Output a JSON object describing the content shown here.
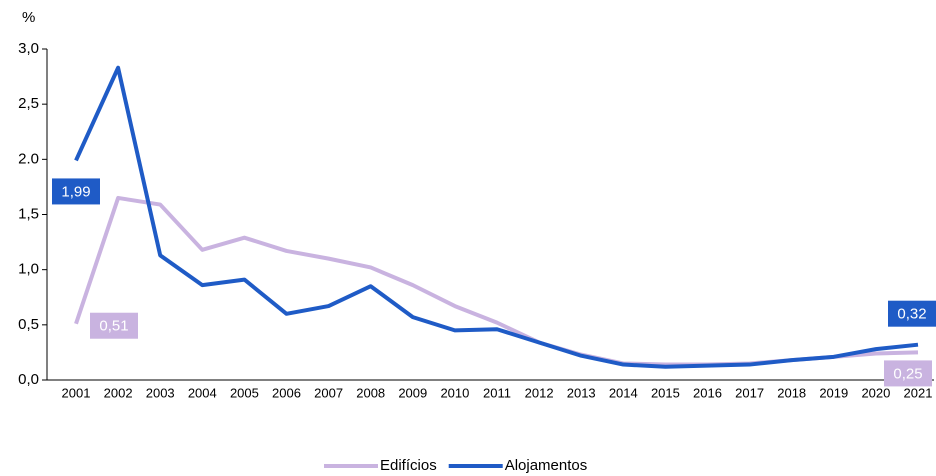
{
  "chart_data": {
    "type": "line",
    "ylabel": "%",
    "categories": [
      "2001",
      "2002",
      "2003",
      "2004",
      "2005",
      "2006",
      "2007",
      "2008",
      "2009",
      "2010",
      "2011",
      "2012",
      "2013",
      "2014",
      "2015",
      "2016",
      "2017",
      "2018",
      "2019",
      "2020",
      "2021"
    ],
    "series": [
      {
        "name": "Edifícios",
        "color": "#c9b3e0",
        "values": [
          0.51,
          1.65,
          1.59,
          1.18,
          1.29,
          1.17,
          1.1,
          1.02,
          0.86,
          0.67,
          0.52,
          0.34,
          0.23,
          0.15,
          0.14,
          0.14,
          0.15,
          0.18,
          0.21,
          0.24,
          0.25
        ],
        "value_labels": [
          "0,51",
          null,
          null,
          null,
          null,
          null,
          null,
          null,
          null,
          null,
          null,
          null,
          null,
          null,
          null,
          null,
          null,
          null,
          null,
          null,
          "0,25"
        ]
      },
      {
        "name": "Alojamentos",
        "color": "#1f5bc6",
        "values": [
          1.99,
          2.83,
          1.13,
          0.86,
          0.91,
          0.6,
          0.67,
          0.85,
          0.57,
          0.45,
          0.46,
          0.34,
          0.22,
          0.14,
          0.12,
          0.13,
          0.14,
          0.18,
          0.21,
          0.28,
          0.32
        ],
        "value_labels": [
          "1,99",
          null,
          null,
          null,
          null,
          null,
          null,
          null,
          null,
          null,
          null,
          null,
          null,
          null,
          null,
          null,
          null,
          null,
          null,
          null,
          "0,32"
        ]
      }
    ],
    "ylim": [
      0,
      3
    ],
    "yticks": [
      {
        "value": 0,
        "label": "0,0"
      },
      {
        "value": 0.5,
        "label": "0,5"
      },
      {
        "value": 1,
        "label": "1,0"
      },
      {
        "value": 1.5,
        "label": "1,5"
      },
      {
        "value": 2,
        "label": "2.0"
      },
      {
        "value": 2.5,
        "label": "2,5"
      },
      {
        "value": 3,
        "label": "3,0"
      }
    ],
    "legend": "bottom"
  }
}
